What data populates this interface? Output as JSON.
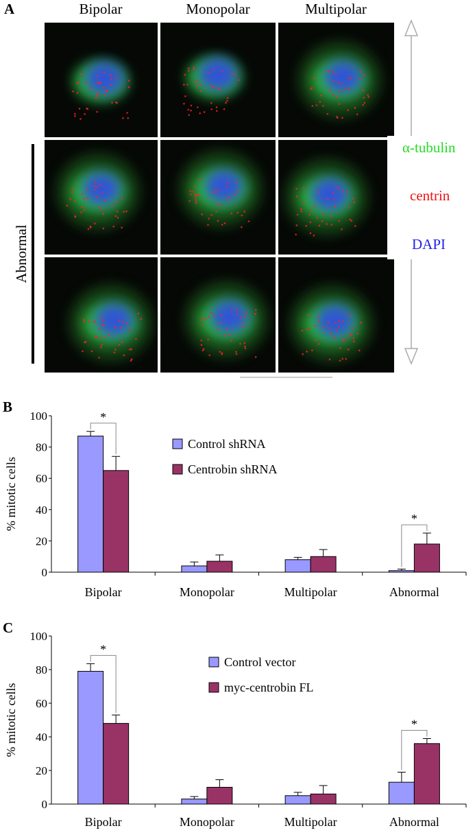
{
  "panel_a": {
    "label": "A",
    "columns": [
      "Bipolar",
      "Monopolar",
      "Multipolar"
    ],
    "row_label": "Abnormal",
    "stain_labels": [
      "α-tubulin",
      "centrin",
      "DAPI"
    ]
  },
  "chart_data": [
    {
      "type": "bar",
      "label": "B",
      "ylabel": "% mitotic cells",
      "categories": [
        "Bipolar",
        "Monopolar",
        "Multipolar",
        "Abnormal"
      ],
      "series": [
        {
          "name": "Control shRNA",
          "color": "#9999ff",
          "values": [
            87,
            4,
            8,
            1
          ],
          "errors": [
            3,
            2.5,
            1.5,
            1
          ]
        },
        {
          "name": "Centrobin shRNA",
          "color": "#993366",
          "values": [
            65,
            7,
            10,
            18
          ],
          "errors": [
            9,
            4,
            4.5,
            7
          ]
        }
      ],
      "ylim": [
        0,
        100
      ],
      "yticks": [
        0,
        20,
        40,
        60,
        80,
        100
      ],
      "legend": "top",
      "annotations": [
        {
          "text": "*",
          "category": "Bipolar"
        },
        {
          "text": "*",
          "category": "Abnormal"
        }
      ]
    },
    {
      "type": "bar",
      "label": "C",
      "ylabel": "% mitotic cells",
      "categories": [
        "Bipolar",
        "Monopolar",
        "Multipolar",
        "Abnormal"
      ],
      "series": [
        {
          "name": "Control vector",
          "color": "#9999ff",
          "values": [
            79,
            3,
            5,
            13
          ],
          "errors": [
            4.5,
            1.5,
            2,
            6
          ]
        },
        {
          "name": "myc-centrobin FL",
          "color": "#993366",
          "values": [
            48,
            10,
            6,
            36
          ],
          "errors": [
            5,
            4.5,
            5,
            3
          ]
        }
      ],
      "ylim": [
        0,
        100
      ],
      "yticks": [
        0,
        20,
        40,
        60,
        80,
        100
      ],
      "legend": "top",
      "annotations": [
        {
          "text": "*",
          "category": "Bipolar"
        },
        {
          "text": "*",
          "category": "Abnormal"
        }
      ]
    }
  ]
}
